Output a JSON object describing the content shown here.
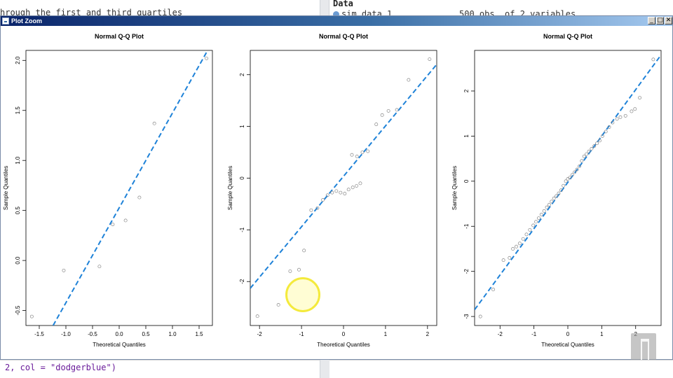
{
  "background": {
    "editor_text": "hrough the first and third quartiles",
    "env_header": "Data",
    "env_item_name": "sim.data.1",
    "env_item_info": "500 obs. of 2 variables",
    "console_text": "2, col = \"dodgerblue\")"
  },
  "window": {
    "title": "Plot Zoom",
    "min_label": "_",
    "max_label": "□",
    "close_label": "✕"
  },
  "colors": {
    "line": "#1e82d8",
    "points": "#888888",
    "titlebar_start": "#0a246a",
    "titlebar_end": "#a6caf0"
  },
  "chart_data": [
    {
      "type": "scatter",
      "title": "Normal Q-Q Plot",
      "xlabel": "Theoretical Quantiles",
      "ylabel": "Sample Quantiles",
      "xlim": [
        -1.75,
        1.75
      ],
      "ylim": [
        -0.65,
        2.1
      ],
      "xticks": [
        -1.5,
        -1.0,
        -0.5,
        0.0,
        0.5,
        1.0,
        1.5
      ],
      "xtick_labels": [
        "-1.5",
        "-1.0",
        "-0.5",
        "0.0",
        "0.5",
        "1.0",
        "1.5"
      ],
      "yticks": [
        -0.5,
        0.0,
        0.5,
        1.0,
        1.5,
        2.0
      ],
      "ytick_labels": [
        "-0.5",
        "0.0",
        "0.5",
        "1.0",
        "1.5",
        "2.0"
      ],
      "points": [
        [
          -1.64,
          -0.56
        ],
        [
          -1.04,
          -0.1
        ],
        [
          -0.37,
          -0.06
        ],
        [
          -0.12,
          0.36
        ],
        [
          0.12,
          0.4
        ],
        [
          0.38,
          0.63
        ],
        [
          0.66,
          1.37
        ],
        [
          1.64,
          2.02
        ]
      ],
      "line": [
        [
          -1.24,
          -0.65
        ],
        [
          1.66,
          2.1
        ]
      ]
    },
    {
      "type": "scatter",
      "title": "Normal Q-Q Plot",
      "xlabel": "Theoretical Quantiles",
      "ylabel": "Sample Quantiles",
      "xlim": [
        -2.22,
        2.22
      ],
      "ylim": [
        -2.85,
        2.47
      ],
      "xticks": [
        -2,
        -1,
        0,
        1,
        2
      ],
      "xtick_labels": [
        "-2",
        "-1",
        "0",
        "1",
        "2"
      ],
      "yticks": [
        -2,
        -1,
        0,
        1,
        2
      ],
      "ytick_labels": [
        "-2",
        "-1",
        "0",
        "1",
        "2"
      ],
      "points": [
        [
          -2.05,
          -2.67
        ],
        [
          -1.55,
          -2.45
        ],
        [
          -1.27,
          -1.8
        ],
        [
          -1.06,
          -1.77
        ],
        [
          -0.94,
          -1.4
        ],
        [
          -0.77,
          -0.62
        ],
        [
          -0.62,
          -0.58
        ],
        [
          -0.49,
          -0.42
        ],
        [
          -0.38,
          -0.33
        ],
        [
          -0.27,
          -0.28
        ],
        [
          -0.17,
          -0.25
        ],
        [
          -0.07,
          -0.28
        ],
        [
          0.03,
          -0.3
        ],
        [
          0.12,
          -0.22
        ],
        [
          0.22,
          -0.18
        ],
        [
          0.31,
          -0.15
        ],
        [
          0.4,
          -0.1
        ],
        [
          0.2,
          0.45
        ],
        [
          0.32,
          0.42
        ],
        [
          0.45,
          0.5
        ],
        [
          0.58,
          0.52
        ],
        [
          0.78,
          1.04
        ],
        [
          0.92,
          1.22
        ],
        [
          1.07,
          1.3
        ],
        [
          1.27,
          1.32
        ],
        [
          1.55,
          1.9
        ],
        [
          2.05,
          2.3
        ]
      ],
      "line": [
        [
          -2.22,
          -2.13
        ],
        [
          2.22,
          2.2
        ]
      ]
    },
    {
      "type": "scatter",
      "title": "Normal Q-Q Plot",
      "xlabel": "Theoretical Quantiles",
      "ylabel": "Sample Quantiles",
      "xlim": [
        -2.75,
        2.75
      ],
      "ylim": [
        -3.2,
        2.9
      ],
      "xticks": [
        -2,
        -1,
        0,
        1,
        2
      ],
      "xtick_labels": [
        "-2",
        "-1",
        "0",
        "1",
        "2"
      ],
      "yticks": [
        -3,
        -2,
        -1,
        0,
        1,
        2
      ],
      "ytick_labels": [
        "-3",
        "-2",
        "-1",
        "0",
        "1",
        "2"
      ],
      "points": [
        [
          -2.58,
          -3.0
        ],
        [
          -2.2,
          -2.4
        ],
        [
          -1.9,
          -1.75
        ],
        [
          -1.72,
          -1.7
        ],
        [
          -1.62,
          -1.5
        ],
        [
          -1.52,
          -1.45
        ],
        [
          -1.42,
          -1.38
        ],
        [
          -1.32,
          -1.28
        ],
        [
          -1.22,
          -1.18
        ],
        [
          -1.12,
          -1.08
        ],
        [
          -1.02,
          -0.98
        ],
        [
          -0.94,
          -0.9
        ],
        [
          -0.86,
          -0.82
        ],
        [
          -0.78,
          -0.74
        ],
        [
          -0.7,
          -0.66
        ],
        [
          -0.62,
          -0.58
        ],
        [
          -0.55,
          -0.52
        ],
        [
          -0.48,
          -0.45
        ],
        [
          -0.41,
          -0.38
        ],
        [
          -0.34,
          -0.33
        ],
        [
          -0.27,
          -0.27
        ],
        [
          -0.2,
          -0.2
        ],
        [
          -0.13,
          -0.1
        ],
        [
          -0.06,
          0.0
        ],
        [
          0.0,
          0.05
        ],
        [
          0.06,
          0.08
        ],
        [
          0.13,
          0.14
        ],
        [
          0.2,
          0.2
        ],
        [
          0.27,
          0.26
        ],
        [
          0.34,
          0.33
        ],
        [
          0.41,
          0.45
        ],
        [
          0.48,
          0.55
        ],
        [
          0.55,
          0.6
        ],
        [
          0.62,
          0.66
        ],
        [
          0.7,
          0.72
        ],
        [
          0.78,
          0.78
        ],
        [
          0.86,
          0.84
        ],
        [
          0.94,
          0.9
        ],
        [
          1.02,
          1.0
        ],
        [
          1.12,
          1.1
        ],
        [
          1.22,
          1.2
        ],
        [
          1.32,
          1.3
        ],
        [
          1.45,
          1.38
        ],
        [
          1.55,
          1.42
        ],
        [
          1.7,
          1.45
        ],
        [
          1.88,
          1.55
        ],
        [
          1.98,
          1.6
        ],
        [
          2.12,
          1.85
        ],
        [
          2.52,
          2.7
        ]
      ],
      "line": [
        [
          -2.75,
          -2.85
        ],
        [
          2.75,
          2.8
        ]
      ]
    }
  ]
}
